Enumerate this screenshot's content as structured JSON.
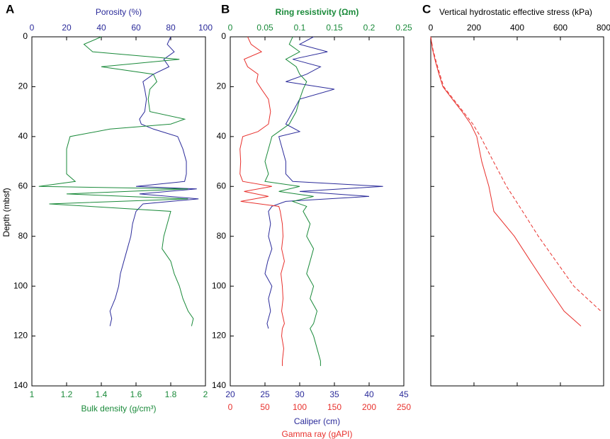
{
  "chart_data": [
    {
      "type": "line",
      "panel": "A",
      "ylabel": "Depth (mbsf)",
      "ylim": [
        0,
        140
      ],
      "y_inverted": true,
      "yticks": [
        0,
        20,
        40,
        60,
        80,
        100,
        120,
        140
      ],
      "ytick_labels": true,
      "depth": [
        0,
        3,
        6,
        9,
        12,
        15,
        18,
        21,
        25,
        30,
        33,
        35,
        37,
        40,
        45,
        50,
        55,
        58,
        60,
        61,
        63,
        65,
        67,
        70,
        75,
        80,
        85,
        90,
        95,
        100,
        105,
        110,
        113,
        116
      ],
      "axes": [
        {
          "side": "top",
          "label": "Porosity (%)",
          "color": "#2b2b9a",
          "lim": [
            0,
            100
          ],
          "ticks": [
            0,
            20,
            40,
            60,
            80,
            100
          ]
        },
        {
          "side": "bottom",
          "label": "Bulk density (g/cm³)",
          "color": "#1a8a3a",
          "lim": [
            1,
            2
          ],
          "ticks": [
            1,
            1.2,
            1.4,
            1.6,
            1.8,
            2
          ]
        }
      ],
      "series": [
        {
          "axis": 0,
          "color": "#2b2b9a",
          "dashed": false,
          "values": [
            80,
            78,
            82,
            76,
            79,
            70,
            64,
            65,
            66,
            65,
            62,
            63,
            70,
            84,
            87,
            89,
            89,
            88,
            60,
            95,
            62,
            96,
            64,
            60,
            58,
            57,
            55,
            53,
            51,
            50,
            48,
            45,
            46,
            45
          ]
        },
        {
          "axis": 1,
          "color": "#1a8a3a",
          "dashed": false,
          "values": [
            1.4,
            1.3,
            1.35,
            1.85,
            1.4,
            1.7,
            1.72,
            1.68,
            1.67,
            1.68,
            1.88,
            1.8,
            1.45,
            1.22,
            1.2,
            1.2,
            1.2,
            1.25,
            1.04,
            1.9,
            1.2,
            1.9,
            1.1,
            1.8,
            1.78,
            1.76,
            1.75,
            1.8,
            1.82,
            1.85,
            1.87,
            1.9,
            1.93,
            1.92
          ]
        }
      ]
    },
    {
      "type": "line",
      "panel": "B",
      "ylim": [
        0,
        140
      ],
      "y_inverted": true,
      "yticks": [
        0,
        20,
        40,
        60,
        80,
        100,
        120,
        140
      ],
      "ytick_labels": true,
      "depth": [
        0,
        3,
        6,
        9,
        12,
        15,
        18,
        21,
        25,
        30,
        35,
        38,
        40,
        45,
        50,
        55,
        58,
        60,
        62,
        64,
        66,
        68,
        70,
        75,
        80,
        85,
        90,
        95,
        100,
        105,
        110,
        115,
        117,
        120,
        125,
        130,
        132
      ],
      "axes": [
        {
          "side": "top",
          "label": "Ring resistivity (Ωm)",
          "color": "#1a8a3a",
          "lim": [
            0,
            0.25
          ],
          "ticks": [
            0,
            0.05,
            0.1,
            0.15,
            0.2,
            0.25
          ]
        },
        {
          "side": "bottom",
          "label": "Caliper (cm)",
          "color": "#2b2b9a",
          "lim": [
            20,
            45
          ],
          "ticks": [
            20,
            25,
            30,
            35,
            40,
            45
          ]
        },
        {
          "side": "bottom",
          "label": "Gamma ray (gAPI)",
          "color": "#e8312d",
          "lim": [
            0,
            250
          ],
          "ticks": [
            0,
            50,
            100,
            150,
            200,
            250
          ]
        }
      ],
      "series": [
        {
          "axis": 1,
          "color": "#2b2b9a",
          "dashed": false,
          "values": [
            32,
            30,
            34,
            29,
            33,
            31,
            28,
            35,
            30,
            29,
            28,
            30,
            27,
            27.5,
            28,
            28,
            29,
            42,
            30,
            40,
            28,
            26,
            25.5,
            25.8,
            25.5,
            26,
            25.4,
            25,
            26,
            25.5,
            25.8,
            25.3,
            25.5,
            null,
            null,
            null,
            null
          ]
        },
        {
          "axis": 2,
          "color": "#e8312d",
          "dashed": false,
          "values": [
            25,
            30,
            45,
            20,
            25,
            40,
            38,
            45,
            55,
            58,
            55,
            40,
            18,
            14,
            15,
            14,
            18,
            60,
            20,
            55,
            15,
            70,
            72,
            75,
            76,
            74,
            78,
            73,
            75,
            76,
            74,
            78,
            75,
            74,
            77,
            75,
            75
          ]
        },
        {
          "axis": 0,
          "color": "#1a8a3a",
          "dashed": false,
          "values": [
            0.09,
            0.085,
            0.1,
            0.08,
            0.095,
            0.1,
            0.11,
            0.105,
            0.1,
            0.095,
            0.085,
            0.07,
            0.06,
            0.055,
            0.05,
            0.055,
            0.05,
            0.1,
            0.07,
            0.12,
            0.09,
            0.11,
            0.105,
            0.115,
            0.11,
            0.12,
            0.115,
            0.11,
            0.12,
            0.115,
            0.125,
            0.12,
            0.115,
            0.12,
            0.125,
            0.13,
            0.13
          ]
        }
      ]
    },
    {
      "type": "line",
      "panel": "C",
      "ylim": [
        0,
        140
      ],
      "y_inverted": true,
      "yticks": [
        0,
        20,
        40,
        60,
        80,
        100,
        120,
        140
      ],
      "ytick_labels": false,
      "depth": [
        0,
        5,
        10,
        15,
        20,
        25,
        30,
        35,
        40,
        50,
        60,
        70,
        80,
        90,
        100,
        110,
        116
      ],
      "axes": [
        {
          "side": "top",
          "label": "Vertical hydrostatic effective stress (kPa)",
          "color": "#000000",
          "lim": [
            0,
            800
          ],
          "ticks": [
            0,
            200,
            400,
            600,
            800
          ]
        }
      ],
      "series": [
        {
          "axis": 0,
          "color": "#e8312d",
          "dashed": false,
          "values": [
            0,
            8,
            22,
            38,
            56,
            100,
            145,
            185,
            213,
            236,
            269,
            292,
            387,
            462,
            538,
            617,
            695
          ]
        },
        {
          "axis": 0,
          "color": "#e8312d",
          "dashed": true,
          "values": [
            0,
            10,
            25,
            42,
            60,
            105,
            150,
            195,
            230,
            290,
            351,
            425,
            498,
            580,
            662,
            787,
            null
          ]
        }
      ]
    }
  ]
}
